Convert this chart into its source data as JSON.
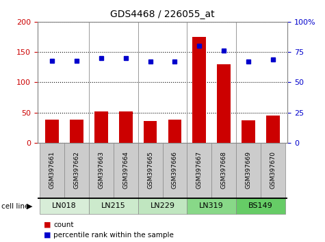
{
  "title": "GDS4468 / 226055_at",
  "samples": [
    "GSM397661",
    "GSM397662",
    "GSM397663",
    "GSM397664",
    "GSM397665",
    "GSM397666",
    "GSM397667",
    "GSM397668",
    "GSM397669",
    "GSM397670"
  ],
  "counts": [
    38,
    38,
    52,
    52,
    36,
    38,
    175,
    130,
    37,
    45
  ],
  "percentile_ranks": [
    68,
    68,
    70,
    70,
    67,
    67,
    80,
    76,
    67,
    69
  ],
  "cell_lines": [
    {
      "name": "LN018",
      "samples": [
        0,
        1
      ],
      "color": "#d8edd8"
    },
    {
      "name": "LN215",
      "samples": [
        2,
        3
      ],
      "color": "#cceacc"
    },
    {
      "name": "LN229",
      "samples": [
        4,
        5
      ],
      "color": "#c0e6c0"
    },
    {
      "name": "LN319",
      "samples": [
        6,
        7
      ],
      "color": "#88d888"
    },
    {
      "name": "BS149",
      "samples": [
        8,
        9
      ],
      "color": "#66cc66"
    }
  ],
  "ylim_left": [
    0,
    200
  ],
  "ylim_right": [
    0,
    100
  ],
  "yticks_left": [
    0,
    50,
    100,
    150,
    200
  ],
  "yticks_right": [
    0,
    25,
    50,
    75,
    100
  ],
  "ytick_labels_right": [
    "0",
    "25",
    "50",
    "75",
    "100%"
  ],
  "bar_color": "#cc0000",
  "dot_color": "#0000cc",
  "grid_color": "#000000",
  "bg_color": "#ffffff",
  "left_tick_color": "#cc0000",
  "right_tick_color": "#0000cc",
  "sample_bg_color": "#cccccc",
  "sample_edge_color": "#888888",
  "legend_count_color": "#cc0000",
  "legend_pct_color": "#0000cc",
  "bar_width": 0.55
}
